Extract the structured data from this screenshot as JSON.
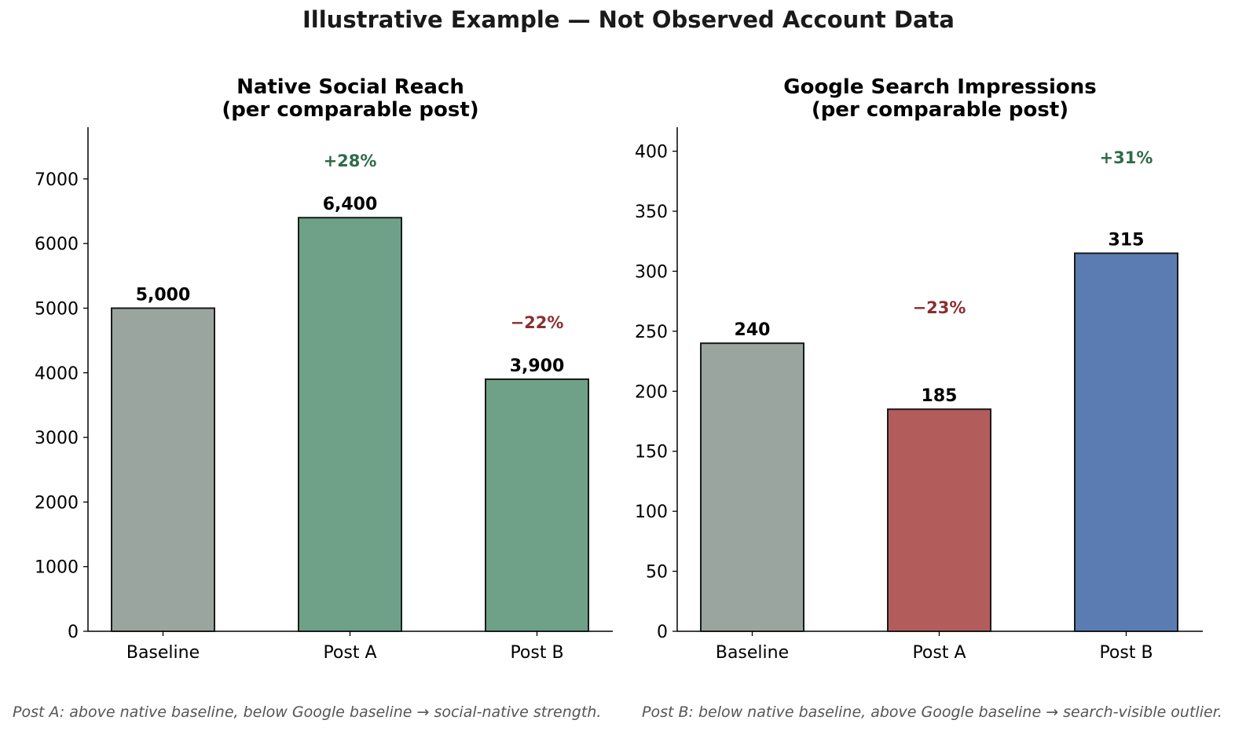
{
  "suptitle": "Illustrative Example — Not Observed Account Data",
  "footnotes": {
    "left": "Post A: above native baseline, below Google baseline → social-native strength.",
    "right": "Post B: below native baseline, above Google baseline → search-visible outlier."
  },
  "chart_data": [
    {
      "type": "bar",
      "title": [
        "Native Social Reach",
        "(per comparable post)"
      ],
      "categories": [
        "Baseline",
        "Post A",
        "Post B"
      ],
      "values": [
        5000,
        6400,
        3900
      ],
      "value_labels": [
        "5,000",
        "6,400",
        "3,900"
      ],
      "bar_colors": [
        "#9aa59f",
        "#6fa088",
        "#6fa088"
      ],
      "ylim": [
        0,
        7800
      ],
      "yticks": [
        0,
        1000,
        2000,
        3000,
        4000,
        5000,
        6000,
        7000
      ],
      "xlabel": "",
      "ylabel": "",
      "annotations": [
        {
          "category": "Post A",
          "text": "+28%",
          "color": "#2e6b4a"
        },
        {
          "category": "Post B",
          "text": "−22%",
          "color": "#8b2e2e"
        }
      ]
    },
    {
      "type": "bar",
      "title": [
        "Google Search Impressions",
        "(per comparable post)"
      ],
      "categories": [
        "Baseline",
        "Post A",
        "Post B"
      ],
      "values": [
        240,
        185,
        315
      ],
      "value_labels": [
        "240",
        "185",
        "315"
      ],
      "bar_colors": [
        "#9aa59f",
        "#b35c5c",
        "#5b7bb3"
      ],
      "ylim": [
        0,
        420
      ],
      "yticks": [
        0,
        50,
        100,
        150,
        200,
        250,
        300,
        350,
        400
      ],
      "xlabel": "",
      "ylabel": "",
      "annotations": [
        {
          "category": "Post A",
          "text": "−23%",
          "color": "#8b2e2e"
        },
        {
          "category": "Post B",
          "text": "+31%",
          "color": "#2e6b4a"
        }
      ]
    }
  ]
}
